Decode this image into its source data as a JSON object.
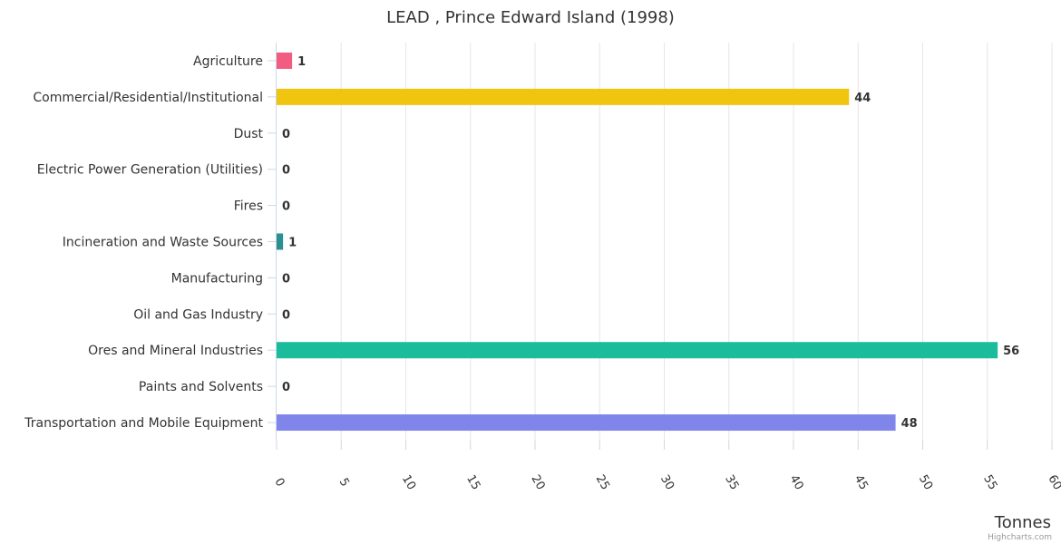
{
  "chart_data": {
    "type": "bar",
    "orientation": "horizontal",
    "title": "LEAD , Prince Edward Island (1998)",
    "categories": [
      "Agriculture",
      "Commercial/Residential/Institutional",
      "Dust",
      "Electric Power Generation (Utilities)",
      "Fires",
      "Incineration and Waste Sources",
      "Manufacturing",
      "Oil and Gas Industry",
      "Ores and Mineral Industries",
      "Paints and Solvents",
      "Transportation and Mobile Equipment"
    ],
    "values": [
      1.2,
      44.3,
      0,
      0,
      0,
      0.5,
      0,
      0,
      55.8,
      0,
      47.9
    ],
    "data_labels": [
      "1",
      "44",
      "0",
      "0",
      "0",
      "1",
      "0",
      "0",
      "56",
      "0",
      "48"
    ],
    "colors": [
      "#f15c80",
      "#f1c40f",
      "#2b908f",
      "#f45b5b",
      "#91e8e1",
      "#2b908f",
      "#7cb5ec",
      "#434348",
      "#1abc9c",
      "#e4d354",
      "#8085e9"
    ],
    "xlabel": "Tonnes",
    "xlim": [
      0,
      60
    ],
    "xticks": [
      "0",
      "5",
      "10",
      "15",
      "20",
      "25",
      "30",
      "35",
      "40",
      "45",
      "50",
      "55",
      "60"
    ],
    "grid": true,
    "legend": "none",
    "credit": "Highcharts.com"
  }
}
